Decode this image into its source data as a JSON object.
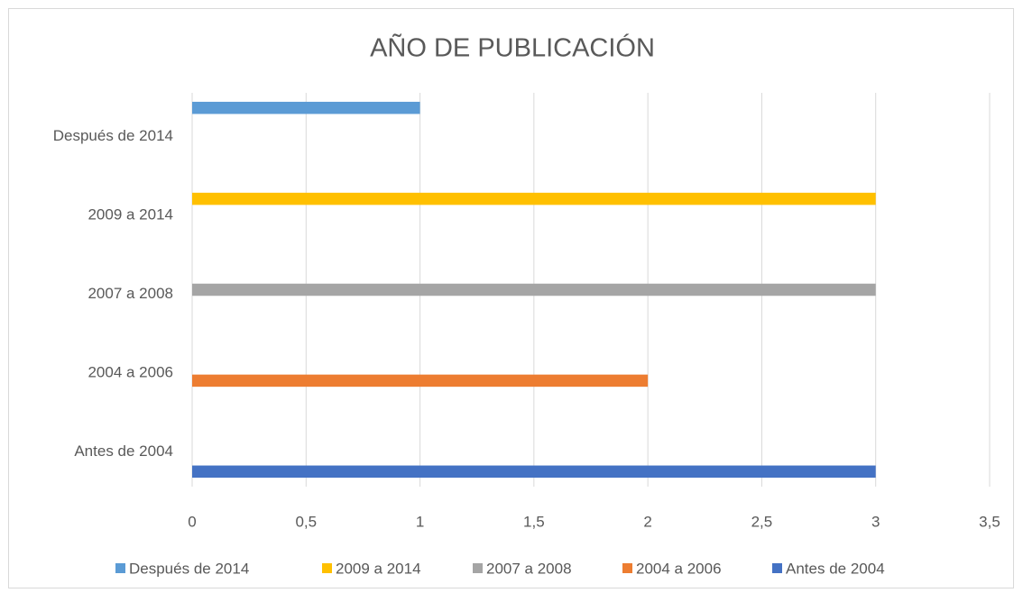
{
  "chart_data": {
    "type": "bar",
    "orientation": "horizontal",
    "title": "AÑO DE PUBLICACIÓN",
    "categories": [
      "Antes de 2004",
      "2004 a 2006",
      "2007 a 2008",
      "2009 a 2014",
      "Después de 2014"
    ],
    "series": [
      {
        "name": "Antes de 2004",
        "color": "#4472c4",
        "values": [
          3,
          null,
          null,
          null,
          null
        ]
      },
      {
        "name": "2004 a 2006",
        "color": "#ed7d31",
        "values": [
          null,
          2,
          null,
          null,
          null
        ]
      },
      {
        "name": "2007 a 2008",
        "color": "#a5a5a5",
        "values": [
          null,
          null,
          3,
          null,
          null
        ]
      },
      {
        "name": "2009 a 2014",
        "color": "#ffc000",
        "values": [
          null,
          null,
          null,
          3,
          null
        ]
      },
      {
        "name": "Después de 2014",
        "color": "#5b9bd5",
        "values": [
          null,
          null,
          null,
          null,
          1
        ]
      }
    ],
    "xlim": [
      0,
      3.5
    ],
    "xticks": [
      0,
      {
        "value": 0.5,
        "label": "0,5"
      },
      1,
      {
        "value": 1.5,
        "label": "1,5"
      },
      2,
      {
        "value": 2.5,
        "label": "2,5"
      },
      3,
      {
        "value": 3.5,
        "label": "3,5"
      }
    ],
    "grid": true,
    "legend": "bottom"
  }
}
